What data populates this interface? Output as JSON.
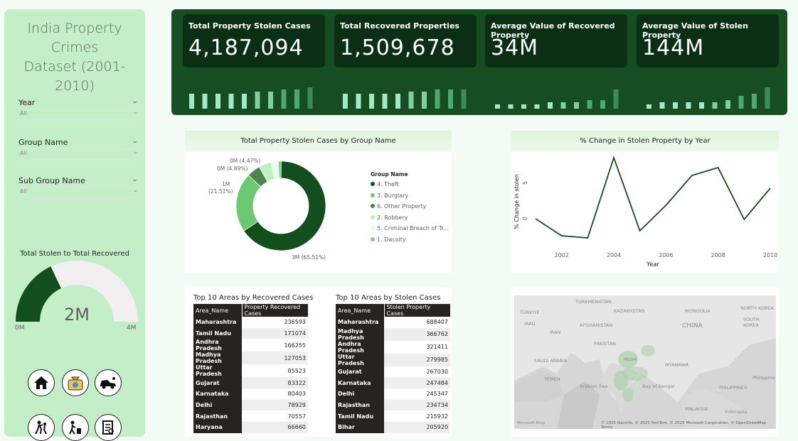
{
  "sidebar": {
    "title_line1": "India Property Crimes",
    "title_line2": "Dataset (2001-2010)",
    "filters": [
      {
        "label": "Year",
        "value": "All"
      },
      {
        "label": "Group Name",
        "value": "All"
      },
      {
        "label": "Sub Group Name",
        "value": "All"
      }
    ],
    "gauge": {
      "title": "Total Stolen to Total Recovered",
      "value_label": "2M",
      "min_label": "0M",
      "max_label": "4M",
      "fraction": 0.36
    },
    "nav_icons": [
      "home-icon",
      "money-bag-icon",
      "car-theft-icon",
      "robbery-icon",
      "burglary-icon",
      "report-icon"
    ]
  },
  "kpis": [
    {
      "title": "Total Property Stolen Cases",
      "value": "4,187,094",
      "spark": [
        7,
        7,
        7,
        7,
        7,
        8,
        8,
        9,
        9,
        10
      ]
    },
    {
      "title": "Total Recovered Properties",
      "value": "1,509,678",
      "spark": [
        7,
        7,
        7,
        7,
        7,
        8,
        8,
        9,
        9,
        9
      ]
    },
    {
      "title": "Average Value of Recovered Property",
      "value": "34M",
      "spark": [
        2,
        2,
        2,
        2,
        3,
        3,
        3,
        4,
        4,
        9
      ]
    },
    {
      "title": "Average Value of Stolen Property",
      "value": "144M",
      "spark": [
        2,
        3,
        3,
        3,
        3,
        3,
        4,
        6,
        7,
        10
      ]
    }
  ],
  "colors": {
    "banner": "#164d23",
    "kpi_bg": "#0b2f14",
    "dark_green": "#134e1f",
    "sidebar": "#c4eec8"
  },
  "donut": {
    "title": "Total Property Stolen Cases by Group Name",
    "legend_title": "Group Name",
    "legend": [
      {
        "name": "4. Theft",
        "color": "#134e1f"
      },
      {
        "name": "3. Burglary",
        "color": "#6cc971"
      },
      {
        "name": "6. Other Property",
        "color": "#4e8250"
      },
      {
        "name": "2. Robbery",
        "color": "#c0f0c2"
      },
      {
        "name": "5. Criminal Breach of Tr...",
        "color": "#eafbea"
      },
      {
        "name": "1. Dacoity",
        "color": "#6fd28a"
      }
    ],
    "slices": [
      65.51,
      21.51,
      4.89,
      4.47,
      2.6,
      1.02
    ],
    "annotations": [
      "3M (65.51%)",
      "1M",
      "(21.51%)",
      "0M (4.89%)",
      "0M (4.47%)"
    ]
  },
  "line_chart": {
    "title": "% Change in Stolen Property by Year",
    "xlabel": "Year",
    "ylabel": "% Change in stolen",
    "x_ticks": [
      "2002",
      "2004",
      "2006",
      "2008",
      "2010"
    ],
    "y_ticks": [
      "5",
      "0"
    ]
  },
  "chart_data": {
    "type": "line",
    "x": [
      2001,
      2002,
      2003,
      2004,
      2005,
      2006,
      2007,
      2008,
      2009,
      2010
    ],
    "y": [
      0.0,
      -2.4,
      -2.7,
      8.6,
      -1.7,
      1.9,
      6.1,
      7.2,
      -0.1,
      4.3
    ],
    "xlabel": "Year",
    "ylabel": "% Change in stolen",
    "ylim": [
      -3,
      9
    ]
  },
  "recovered_table": {
    "title": "Top 10 Areas by Recovered Cases",
    "headers": [
      "Area_Name",
      "Property Recovered Cases"
    ],
    "rows": [
      [
        "Maharashtra",
        "236593"
      ],
      [
        "Tamil Nadu",
        "171074"
      ],
      [
        "Andhra Pradesh",
        "166255"
      ],
      [
        "Madhya Pradesh",
        "127053"
      ],
      [
        "Uttar Pradesh",
        "85523"
      ],
      [
        "Gujarat",
        "83322"
      ],
      [
        "Karnataka",
        "80403"
      ],
      [
        "Delhi",
        "78929"
      ],
      [
        "Rajasthan",
        "70557"
      ],
      [
        "Haryana",
        "66660"
      ]
    ]
  },
  "stolen_table": {
    "title": "Top 10 Areas by Stolen Cases",
    "headers": [
      "Area_Name",
      "Stolen Property Cases"
    ],
    "rows": [
      [
        "Maharashtra",
        "688407"
      ],
      [
        "Madhya Pradesh",
        "366762"
      ],
      [
        "Andhra Pradesh",
        "321411"
      ],
      [
        "Uttar Pradesh",
        "279985"
      ],
      [
        "Gujarat",
        "267030"
      ],
      [
        "Karnataka",
        "247484"
      ],
      [
        "Delhi",
        "245347"
      ],
      [
        "Rajasthan",
        "234734"
      ],
      [
        "Tamil Nadu",
        "215932"
      ],
      [
        "Bihar",
        "205920"
      ]
    ]
  },
  "map": {
    "labels": [
      "TÜRKIYE",
      "TURKMENISTAN",
      "KAZAKHSTAN",
      "MONGOLIA",
      "NORTH KOREA",
      "SOUTH KOREA",
      "IRAQ",
      "IRAN",
      "AFGHANISTAN",
      "PAKISTAN",
      "CHINA",
      "SAUDI ARABIA",
      "INDIA",
      "MYANMAR",
      "YEMEN",
      "Arabian Sea",
      "Bay of Bengal",
      "PHILIPPINES",
      "Philippine",
      "MALAYSIA",
      "Indonesia"
    ],
    "copyright": "© 2025 Navinfo, © 2025 TomTom, © 2025 Microsoft Corporation, © OpenStreetMap  Terms",
    "brand": "Microsoft Bing"
  }
}
